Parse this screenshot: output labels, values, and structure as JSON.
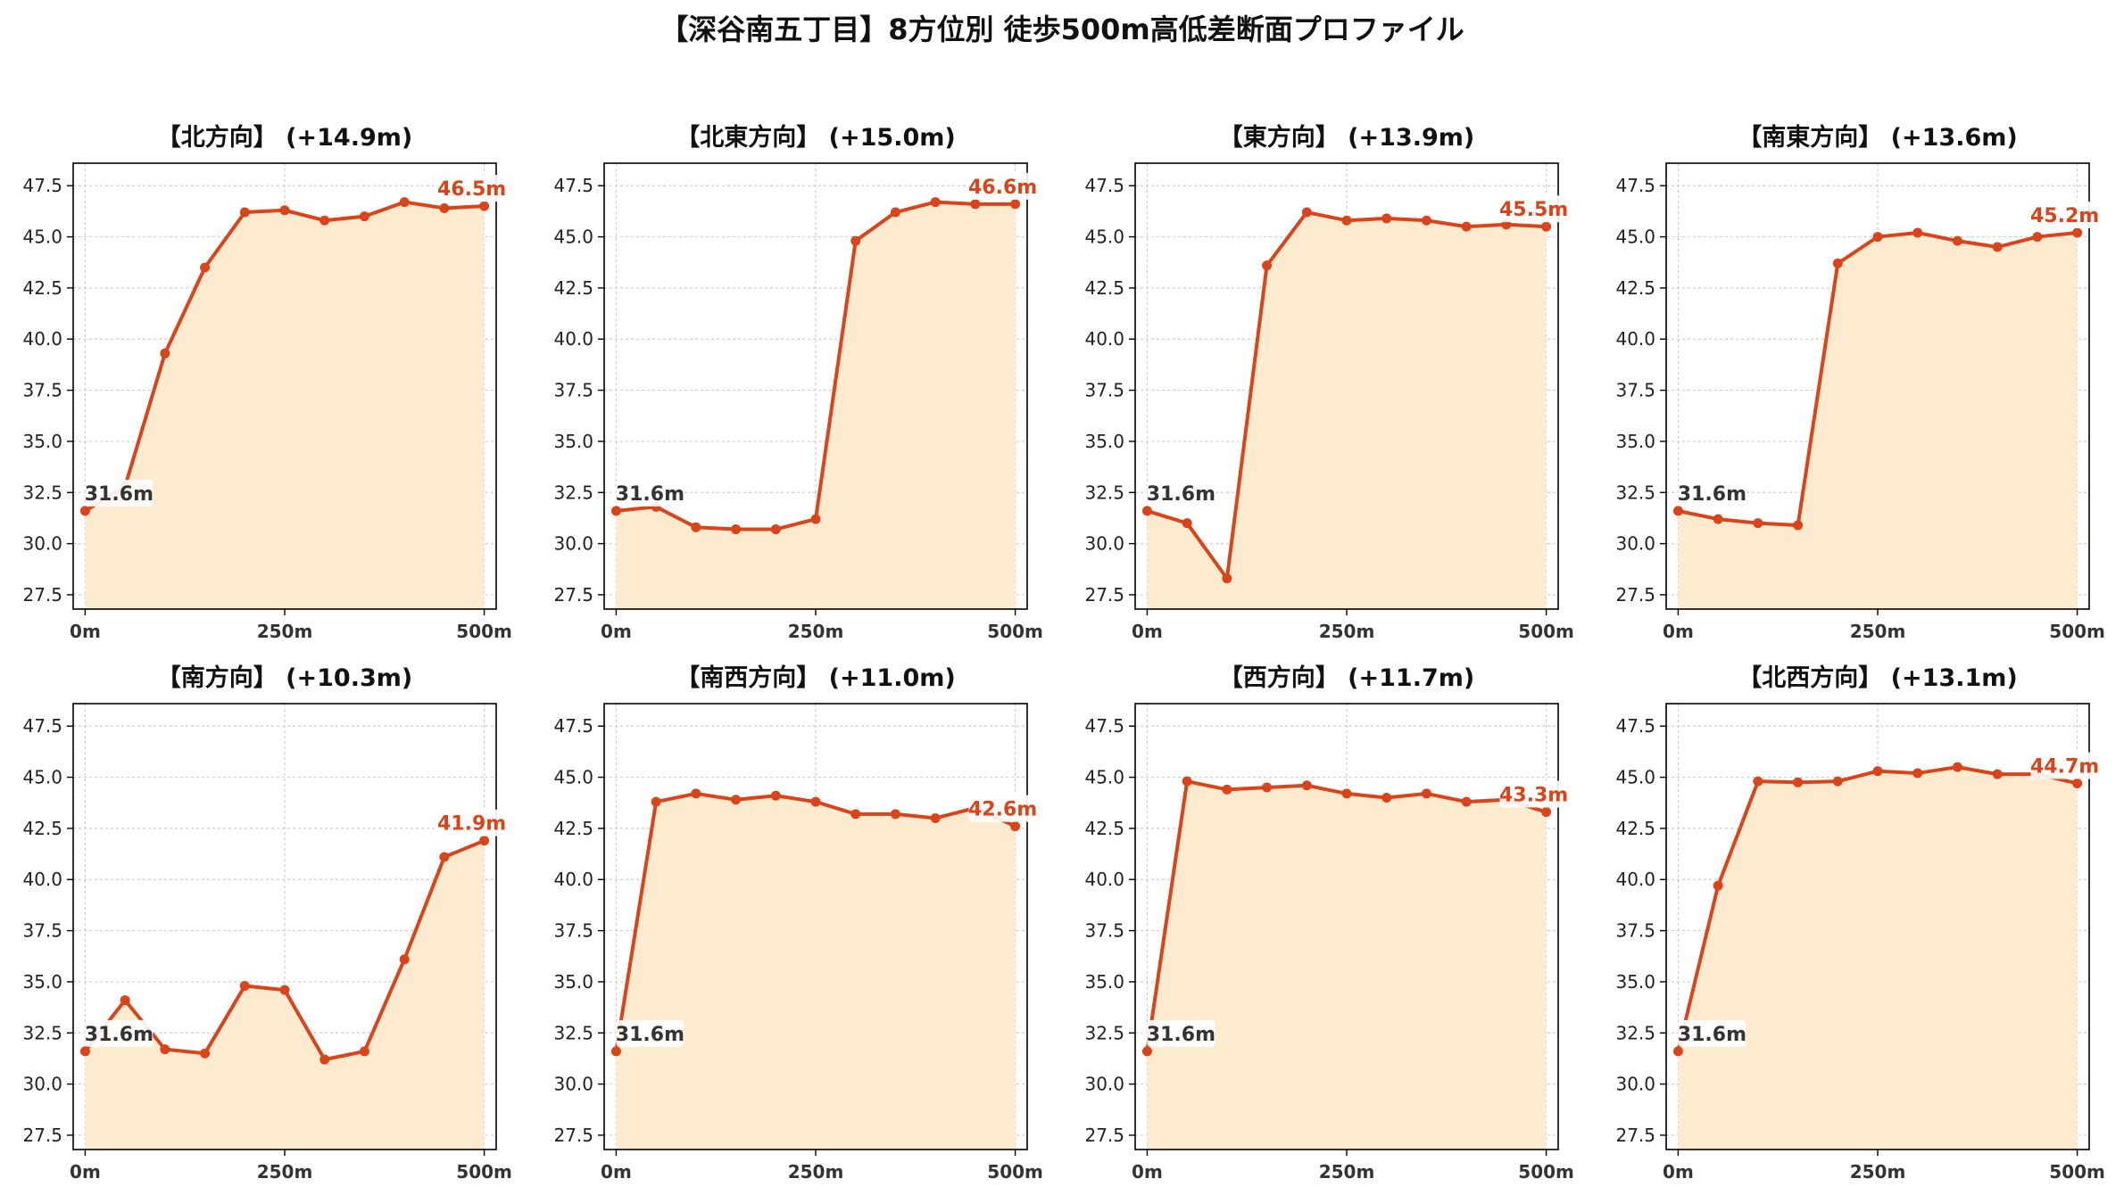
{
  "title": "【深谷南五丁目】8方位別 徒歩500m高低差断面プロファイル",
  "colors": {
    "line": "#d9441a",
    "fill": "#fdebd0",
    "start_label": "#333333",
    "end_label": "#d9441a",
    "grid": "#cccccc"
  },
  "chart_data": [
    {
      "type": "area",
      "title": "【北方向】 (+14.9m)",
      "x": [
        0,
        50,
        100,
        150,
        200,
        250,
        300,
        350,
        400,
        450,
        500
      ],
      "values": [
        31.6,
        32.8,
        39.3,
        43.5,
        46.2,
        46.3,
        45.8,
        46.0,
        46.7,
        46.4,
        46.5
      ],
      "start_label": "31.6m",
      "end_label": "46.5m",
      "xticks": [
        0,
        250,
        500
      ],
      "xtick_labels": [
        "0m",
        "250m",
        "500m"
      ],
      "yticks": [
        27.5,
        30.0,
        32.5,
        35.0,
        37.5,
        40.0,
        42.5,
        45.0,
        47.5
      ],
      "xlim": [
        -15,
        515
      ],
      "ylim": [
        26.8,
        48.6
      ],
      "grid": true
    },
    {
      "type": "area",
      "title": "【北東方向】 (+15.0m)",
      "x": [
        0,
        50,
        100,
        150,
        200,
        250,
        300,
        350,
        400,
        450,
        500
      ],
      "values": [
        31.6,
        31.8,
        30.8,
        30.7,
        30.7,
        31.2,
        44.8,
        46.2,
        46.7,
        46.6,
        46.6
      ],
      "start_label": "31.6m",
      "end_label": "46.6m",
      "xticks": [
        0,
        250,
        500
      ],
      "xtick_labels": [
        "0m",
        "250m",
        "500m"
      ],
      "yticks": [
        27.5,
        30.0,
        32.5,
        35.0,
        37.5,
        40.0,
        42.5,
        45.0,
        47.5
      ],
      "xlim": [
        -15,
        515
      ],
      "ylim": [
        26.8,
        48.6
      ],
      "grid": true
    },
    {
      "type": "area",
      "title": "【東方向】 (+13.9m)",
      "x": [
        0,
        50,
        100,
        150,
        200,
        250,
        300,
        350,
        400,
        450,
        500
      ],
      "values": [
        31.6,
        31.0,
        28.3,
        43.6,
        46.2,
        45.8,
        45.9,
        45.8,
        45.5,
        45.6,
        45.5
      ],
      "start_label": "31.6m",
      "end_label": "45.5m",
      "xticks": [
        0,
        250,
        500
      ],
      "xtick_labels": [
        "0m",
        "250m",
        "500m"
      ],
      "yticks": [
        27.5,
        30.0,
        32.5,
        35.0,
        37.5,
        40.0,
        42.5,
        45.0,
        47.5
      ],
      "xlim": [
        -15,
        515
      ],
      "ylim": [
        26.8,
        48.6
      ],
      "grid": true
    },
    {
      "type": "area",
      "title": "【南東方向】 (+13.6m)",
      "x": [
        0,
        50,
        100,
        150,
        200,
        250,
        300,
        350,
        400,
        450,
        500
      ],
      "values": [
        31.6,
        31.2,
        31.0,
        30.9,
        43.7,
        45.0,
        45.2,
        44.8,
        44.5,
        45.0,
        45.2
      ],
      "start_label": "31.6m",
      "end_label": "45.2m",
      "xticks": [
        0,
        250,
        500
      ],
      "xtick_labels": [
        "0m",
        "250m",
        "500m"
      ],
      "yticks": [
        27.5,
        30.0,
        32.5,
        35.0,
        37.5,
        40.0,
        42.5,
        45.0,
        47.5
      ],
      "xlim": [
        -15,
        515
      ],
      "ylim": [
        26.8,
        48.6
      ],
      "grid": true
    },
    {
      "type": "area",
      "title": "【南方向】 (+10.3m)",
      "x": [
        0,
        50,
        100,
        150,
        200,
        250,
        300,
        350,
        400,
        450,
        500
      ],
      "values": [
        31.6,
        34.1,
        31.7,
        31.5,
        34.8,
        34.6,
        31.2,
        31.6,
        36.1,
        41.1,
        41.9
      ],
      "start_label": "31.6m",
      "end_label": "41.9m",
      "xticks": [
        0,
        250,
        500
      ],
      "xtick_labels": [
        "0m",
        "250m",
        "500m"
      ],
      "yticks": [
        27.5,
        30.0,
        32.5,
        35.0,
        37.5,
        40.0,
        42.5,
        45.0,
        47.5
      ],
      "xlim": [
        -15,
        515
      ],
      "ylim": [
        26.8,
        48.6
      ],
      "grid": true
    },
    {
      "type": "area",
      "title": "【南西方向】 (+11.0m)",
      "x": [
        0,
        50,
        100,
        150,
        200,
        250,
        300,
        350,
        400,
        450,
        500
      ],
      "values": [
        31.6,
        43.8,
        44.2,
        43.9,
        44.1,
        43.8,
        43.2,
        43.2,
        43.0,
        43.5,
        42.6
      ],
      "start_label": "31.6m",
      "end_label": "42.6m",
      "xticks": [
        0,
        250,
        500
      ],
      "xtick_labels": [
        "0m",
        "250m",
        "500m"
      ],
      "yticks": [
        27.5,
        30.0,
        32.5,
        35.0,
        37.5,
        40.0,
        42.5,
        45.0,
        47.5
      ],
      "xlim": [
        -15,
        515
      ],
      "ylim": [
        26.8,
        48.6
      ],
      "grid": true
    },
    {
      "type": "area",
      "title": "【西方向】 (+11.7m)",
      "x": [
        0,
        50,
        100,
        150,
        200,
        250,
        300,
        350,
        400,
        450,
        500
      ],
      "values": [
        31.6,
        44.8,
        44.4,
        44.5,
        44.6,
        44.2,
        44.0,
        44.2,
        43.8,
        43.9,
        43.3
      ],
      "start_label": "31.6m",
      "end_label": "43.3m",
      "xticks": [
        0,
        250,
        500
      ],
      "xtick_labels": [
        "0m",
        "250m",
        "500m"
      ],
      "yticks": [
        27.5,
        30.0,
        32.5,
        35.0,
        37.5,
        40.0,
        42.5,
        45.0,
        47.5
      ],
      "xlim": [
        -15,
        515
      ],
      "ylim": [
        26.8,
        48.6
      ],
      "grid": true
    },
    {
      "type": "area",
      "title": "【北西方向】 (+13.1m)",
      "x": [
        0,
        50,
        100,
        150,
        200,
        250,
        300,
        350,
        400,
        450,
        500
      ],
      "values": [
        31.6,
        39.7,
        44.8,
        44.75,
        44.8,
        45.3,
        45.2,
        45.5,
        45.15,
        45.15,
        44.7
      ],
      "start_label": "31.6m",
      "end_label": "44.7m",
      "xticks": [
        0,
        250,
        500
      ],
      "xtick_labels": [
        "0m",
        "250m",
        "500m"
      ],
      "yticks": [
        27.5,
        30.0,
        32.5,
        35.0,
        37.5,
        40.0,
        42.5,
        45.0,
        47.5
      ],
      "xlim": [
        -15,
        515
      ],
      "ylim": [
        26.8,
        48.6
      ],
      "grid": true
    }
  ]
}
